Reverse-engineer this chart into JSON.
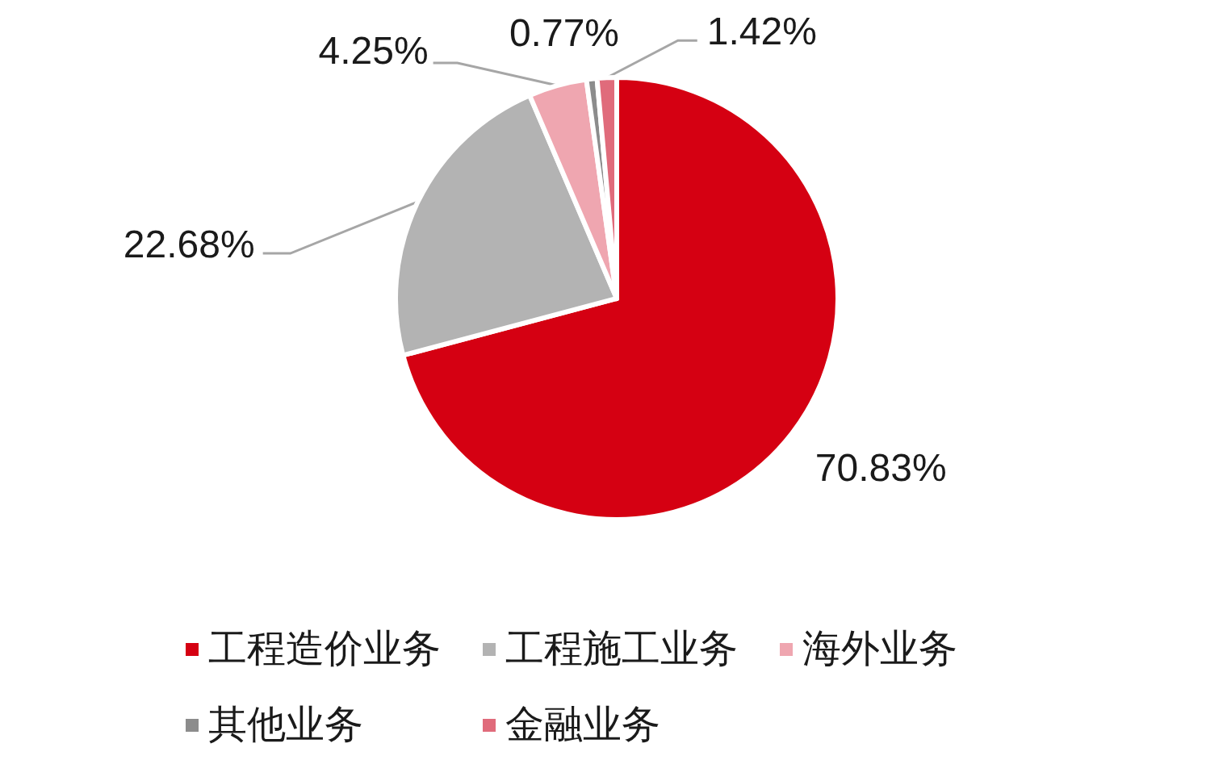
{
  "chart_data": {
    "type": "pie",
    "categories": [
      "工程造价业务",
      "工程施工业务",
      "海外业务",
      "其他业务",
      "金融业务"
    ],
    "values": [
      70.83,
      22.68,
      4.25,
      0.77,
      1.42
    ],
    "colors": [
      "#d50012",
      "#b3b3b3",
      "#efa6b0",
      "#8c8c8c",
      "#e06b7b"
    ],
    "value_labels": [
      "70.83%",
      "22.68%",
      "4.25%",
      "0.77%",
      "1.42%"
    ],
    "legend": "bottom"
  }
}
